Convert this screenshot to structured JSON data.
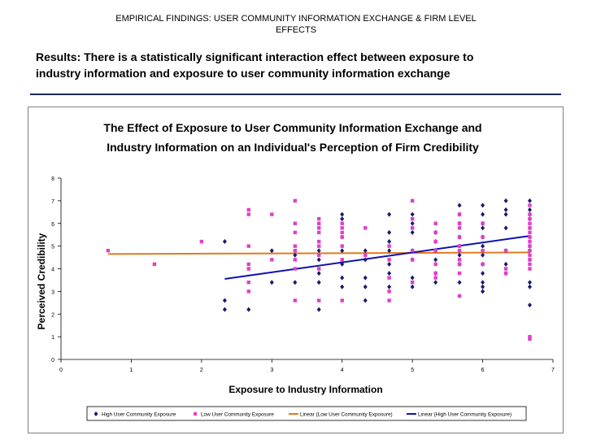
{
  "slide": {
    "title_line1": "EMPIRICAL FINDINGS: USER COMMUNITY INFORMATION EXCHANGE & FIRM LEVEL",
    "title_line2": "EFFECTS",
    "headline_line1": "Results: There is a statistically significant interaction effect between exposure to",
    "headline_line2": "industry information and exposure to user community information exchange"
  },
  "colors": {
    "high_series": "#1a1a6e",
    "low_series": "#e040c8",
    "low_trend": "#e07a20",
    "high_trend": "#1010b0",
    "rule": "#1f2a5a"
  },
  "chart_data": {
    "type": "scatter",
    "title_line1": "The Effect of Exposure to User Community Information Exchange and",
    "title_line2": "Industry Information on an Individual's Perception of Firm Credibility",
    "xlabel": "Exposure to Industry Information",
    "ylabel": "Perceived Credibility",
    "xlim": [
      0,
      7
    ],
    "ylim": [
      0,
      8
    ],
    "xticks": [
      "0",
      "1",
      "2",
      "3",
      "4",
      "5",
      "6",
      "7"
    ],
    "yticks": [
      "0",
      "1",
      "2",
      "3",
      "4",
      "5",
      "6",
      "7",
      "8"
    ],
    "legend_position": "bottom",
    "series": [
      {
        "name": "High User Community Exposure",
        "marker": "diamond",
        "points": [
          [
            2.33,
            5.2
          ],
          [
            2.33,
            2.6
          ],
          [
            2.33,
            2.2
          ],
          [
            2.67,
            2.2
          ],
          [
            3.0,
            4.8
          ],
          [
            3.0,
            3.4
          ],
          [
            3.33,
            4.6
          ],
          [
            3.33,
            3.4
          ],
          [
            3.67,
            4.8
          ],
          [
            3.67,
            4.4
          ],
          [
            3.67,
            3.8
          ],
          [
            3.67,
            3.4
          ],
          [
            3.67,
            2.2
          ],
          [
            4.0,
            6.4
          ],
          [
            4.0,
            6.2
          ],
          [
            4.0,
            5.4
          ],
          [
            4.0,
            4.8
          ],
          [
            4.0,
            4.2
          ],
          [
            4.0,
            3.6
          ],
          [
            4.0,
            3.2
          ],
          [
            4.33,
            4.8
          ],
          [
            4.33,
            4.4
          ],
          [
            4.33,
            3.6
          ],
          [
            4.33,
            3.2
          ],
          [
            4.33,
            2.6
          ],
          [
            4.67,
            6.4
          ],
          [
            4.67,
            5.6
          ],
          [
            4.67,
            5.2
          ],
          [
            4.67,
            4.8
          ],
          [
            4.67,
            4.2
          ],
          [
            4.67,
            3.8
          ],
          [
            4.67,
            3.2
          ],
          [
            5.0,
            6.4
          ],
          [
            5.0,
            6.0
          ],
          [
            5.0,
            5.6
          ],
          [
            5.0,
            4.8
          ],
          [
            5.0,
            4.4
          ],
          [
            5.0,
            3.6
          ],
          [
            5.0,
            3.2
          ],
          [
            5.33,
            5.6
          ],
          [
            5.33,
            5.2
          ],
          [
            5.33,
            4.8
          ],
          [
            5.33,
            4.4
          ],
          [
            5.33,
            3.8
          ],
          [
            5.33,
            3.4
          ],
          [
            5.67,
            6.8
          ],
          [
            5.67,
            6.4
          ],
          [
            5.67,
            6.0
          ],
          [
            5.67,
            5.4
          ],
          [
            5.67,
            5.0
          ],
          [
            5.67,
            4.6
          ],
          [
            5.67,
            4.2
          ],
          [
            5.67,
            3.4
          ],
          [
            6.0,
            6.8
          ],
          [
            6.0,
            6.4
          ],
          [
            6.0,
            6.0
          ],
          [
            6.0,
            5.8
          ],
          [
            6.0,
            5.4
          ],
          [
            6.0,
            5.0
          ],
          [
            6.0,
            4.6
          ],
          [
            6.0,
            4.2
          ],
          [
            6.0,
            3.8
          ],
          [
            6.0,
            3.4
          ],
          [
            6.0,
            3.2
          ],
          [
            6.0,
            3.0
          ],
          [
            6.33,
            7.0
          ],
          [
            6.33,
            6.6
          ],
          [
            6.33,
            6.4
          ],
          [
            6.33,
            5.8
          ],
          [
            6.33,
            4.8
          ],
          [
            6.33,
            4.2
          ],
          [
            6.33,
            3.8
          ],
          [
            6.67,
            7.0
          ],
          [
            6.67,
            6.6
          ],
          [
            6.67,
            6.4
          ],
          [
            6.67,
            6.2
          ],
          [
            6.67,
            5.8
          ],
          [
            6.67,
            5.4
          ],
          [
            6.67,
            5.0
          ],
          [
            6.67,
            4.8
          ],
          [
            6.67,
            4.4
          ],
          [
            6.67,
            3.4
          ],
          [
            6.67,
            3.2
          ],
          [
            6.67,
            2.4
          ]
        ]
      },
      {
        "name": "Low User Community Exposure",
        "marker": "square",
        "points": [
          [
            0.67,
            4.8
          ],
          [
            1.33,
            4.2
          ],
          [
            2.0,
            5.2
          ],
          [
            2.67,
            6.6
          ],
          [
            2.67,
            6.4
          ],
          [
            2.67,
            5.0
          ],
          [
            2.67,
            4.2
          ],
          [
            2.67,
            4.0
          ],
          [
            2.67,
            3.4
          ],
          [
            2.67,
            3.0
          ],
          [
            3.0,
            6.4
          ],
          [
            3.0,
            4.4
          ],
          [
            3.33,
            7.0
          ],
          [
            3.33,
            6.0
          ],
          [
            3.33,
            5.6
          ],
          [
            3.33,
            5.0
          ],
          [
            3.33,
            4.8
          ],
          [
            3.33,
            4.4
          ],
          [
            3.33,
            4.0
          ],
          [
            3.33,
            2.6
          ],
          [
            3.67,
            6.2
          ],
          [
            3.67,
            6.0
          ],
          [
            3.67,
            5.8
          ],
          [
            3.67,
            5.6
          ],
          [
            3.67,
            5.2
          ],
          [
            3.67,
            5.0
          ],
          [
            3.67,
            4.6
          ],
          [
            3.67,
            4.0
          ],
          [
            3.67,
            2.6
          ],
          [
            4.0,
            6.0
          ],
          [
            4.0,
            5.8
          ],
          [
            4.0,
            5.6
          ],
          [
            4.0,
            5.4
          ],
          [
            4.0,
            5.0
          ],
          [
            4.0,
            4.4
          ],
          [
            4.0,
            2.6
          ],
          [
            4.33,
            5.8
          ],
          [
            4.33,
            4.6
          ],
          [
            4.67,
            5.0
          ],
          [
            4.67,
            4.4
          ],
          [
            4.67,
            3.6
          ],
          [
            4.67,
            3.0
          ],
          [
            4.67,
            2.6
          ],
          [
            5.0,
            7.0
          ],
          [
            5.0,
            6.2
          ],
          [
            5.0,
            5.8
          ],
          [
            5.0,
            4.8
          ],
          [
            5.0,
            4.4
          ],
          [
            5.0,
            3.4
          ],
          [
            5.33,
            6.0
          ],
          [
            5.33,
            5.6
          ],
          [
            5.33,
            5.2
          ],
          [
            5.33,
            4.8
          ],
          [
            5.33,
            4.2
          ],
          [
            5.33,
            3.8
          ],
          [
            5.33,
            3.6
          ],
          [
            5.67,
            6.4
          ],
          [
            5.67,
            6.0
          ],
          [
            5.67,
            5.8
          ],
          [
            5.67,
            5.4
          ],
          [
            5.67,
            5.0
          ],
          [
            5.67,
            4.8
          ],
          [
            5.67,
            4.4
          ],
          [
            5.67,
            4.2
          ],
          [
            5.67,
            3.8
          ],
          [
            5.67,
            2.8
          ],
          [
            6.0,
            6.0
          ],
          [
            6.0,
            5.4
          ],
          [
            6.0,
            4.8
          ],
          [
            6.0,
            4.2
          ],
          [
            6.33,
            4.8
          ],
          [
            6.33,
            4.0
          ],
          [
            6.33,
            3.8
          ],
          [
            6.67,
            6.8
          ],
          [
            6.67,
            6.4
          ],
          [
            6.67,
            6.2
          ],
          [
            6.67,
            6.0
          ],
          [
            6.67,
            5.8
          ],
          [
            6.67,
            5.6
          ],
          [
            6.67,
            5.4
          ],
          [
            6.67,
            5.2
          ],
          [
            6.67,
            5.0
          ],
          [
            6.67,
            4.8
          ],
          [
            6.67,
            4.6
          ],
          [
            6.67,
            4.4
          ],
          [
            6.67,
            4.2
          ],
          [
            6.67,
            4.0
          ],
          [
            6.67,
            1.0
          ],
          [
            6.67,
            0.9
          ]
        ]
      }
    ],
    "trendlines": [
      {
        "name": "Linear (Low User Community Exposure)",
        "from": [
          0.67,
          4.65
        ],
        "to": [
          6.67,
          4.72
        ]
      },
      {
        "name": "Linear (High User Community Exposure)",
        "from": [
          2.33,
          3.55
        ],
        "to": [
          6.67,
          5.45
        ]
      }
    ]
  }
}
